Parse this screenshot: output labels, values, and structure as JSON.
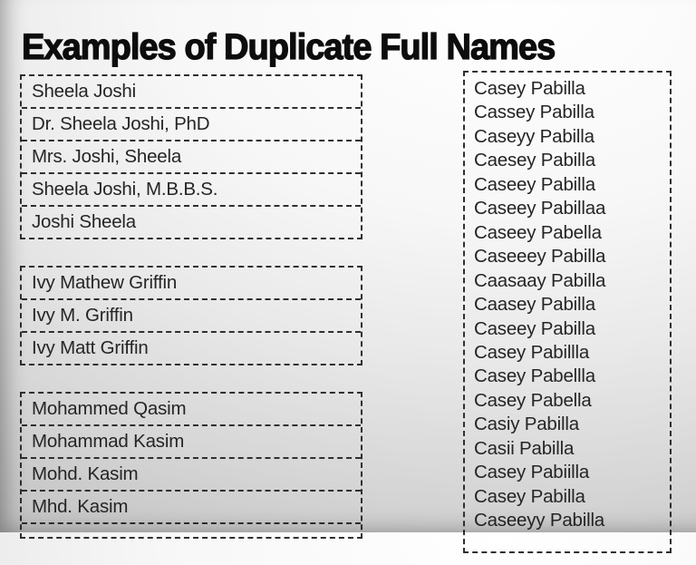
{
  "title": "Examples of Duplicate Full Names",
  "left_column": {
    "groups": [
      {
        "id": "sheela-joshi",
        "rows": [
          "Sheela Joshi",
          "Dr. Sheela Joshi, PhD",
          "Mrs. Joshi, Sheela",
          "Sheela Joshi, M.B.B.S.",
          "Joshi Sheela"
        ]
      },
      {
        "id": "ivy-griffin",
        "rows": [
          "Ivy Mathew Griffin",
          "Ivy M. Griffin",
          "Ivy Matt Griffin"
        ]
      },
      {
        "id": "mohammed-qasim",
        "rows": [
          "Mohammed Qasim",
          "Mohammad Kasim",
          "Mohd. Kasim",
          "Mhd. Kasim"
        ]
      }
    ]
  },
  "right_column": {
    "rows": [
      "Casey Pabilla",
      "Cassey Pabilla",
      "Caseyy Pabilla",
      "Caesey Pabilla",
      "Caseey Pabilla",
      "Caseey Pabillaa",
      "Caseey Pabella",
      "Caseeey Pabilla",
      "Caasaay Pabilla",
      "Caasey Pabilla",
      "Caseey Pabilla",
      "Casey Pabillla",
      "Casey Pabellla",
      "Casey Pabella",
      "Casiy Pabilla",
      "Casii Pabilla",
      "Casey Pabiilla",
      "Casey Pabilla",
      "Caseeyy Pabilla"
    ]
  },
  "colors": {
    "text": "#252525",
    "border": "#2f2f2f",
    "title": "#0d0d0d",
    "background_top": "#ffffff",
    "background_bottom": "#c2c2c2"
  }
}
